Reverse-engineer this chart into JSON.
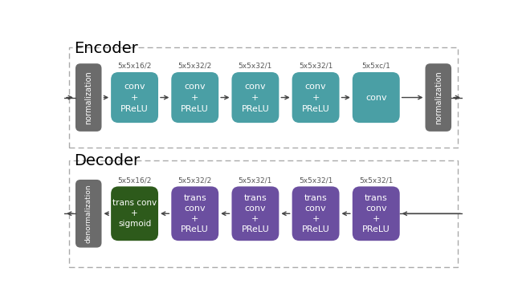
{
  "encoder_title": "Encoder",
  "decoder_title": "Decoder",
  "teal_color": "#4a9fa5",
  "gray_color": "#6b6b6b",
  "green_color": "#2d5a1b",
  "purple_color": "#6b4fa0",
  "white_text": "#ffffff",
  "bg_color": "#ffffff",
  "arrow_color": "#444444",
  "encoder_blocks": [
    {
      "label": "conv\n+\nPReLU",
      "sublabel": "5x5x16/2",
      "color": "#4a9fa5"
    },
    {
      "label": "conv\n+\nPReLU",
      "sublabel": "5x5x32/2",
      "color": "#4a9fa5"
    },
    {
      "label": "conv\n+\nPReLU",
      "sublabel": "5x5x32/1",
      "color": "#4a9fa5"
    },
    {
      "label": "conv\n+\nPReLU",
      "sublabel": "5x5x32/1",
      "color": "#4a9fa5"
    },
    {
      "label": "conv",
      "sublabel": "5x5xc/1",
      "color": "#4a9fa5"
    }
  ],
  "decoder_blocks": [
    {
      "label": "trans conv\n+\nsigmoid",
      "sublabel": "5x5x16/2",
      "color": "#2d5a1b"
    },
    {
      "label": "trans\nconv\n+\nPReLU",
      "sublabel": "5x5x32/2",
      "color": "#6b4fa0"
    },
    {
      "label": "trans\nconv\n+\nPReLU",
      "sublabel": "5x5x32/1",
      "color": "#6b4fa0"
    },
    {
      "label": "trans\nconv\n+\nPReLU",
      "sublabel": "5x5x32/1",
      "color": "#6b4fa0"
    },
    {
      "label": "trans\nconv\n+\nPReLU",
      "sublabel": "5x5x32/1",
      "color": "#6b4fa0"
    }
  ],
  "fig_width": 6.4,
  "fig_height": 3.84,
  "dpi": 100
}
